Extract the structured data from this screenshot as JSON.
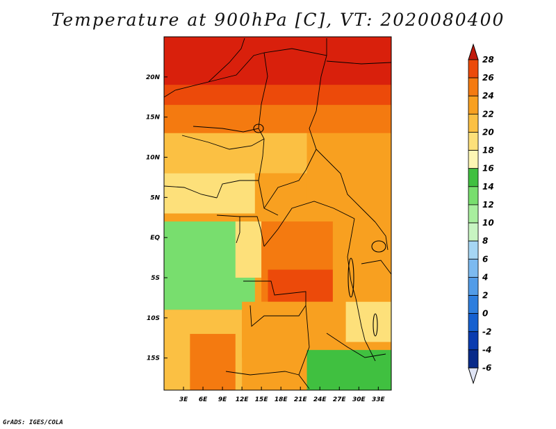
{
  "chart_data": {
    "type": "heatmap",
    "title": "Temperature at 900hPa [C], VT: 2020080400",
    "xlabel": "",
    "ylabel": "",
    "x_range": [
      0,
      35
    ],
    "y_range": [
      -19,
      25
    ],
    "x_ticks": [
      "3E",
      "6E",
      "9E",
      "12E",
      "15E",
      "18E",
      "21E",
      "24E",
      "27E",
      "30E",
      "33E"
    ],
    "x_tick_values": [
      3,
      6,
      9,
      12,
      15,
      18,
      21,
      24,
      27,
      30,
      33
    ],
    "y_ticks": [
      "20N",
      "15N",
      "10N",
      "5N",
      "EQ",
      "5S",
      "10S",
      "15S"
    ],
    "y_tick_values": [
      20,
      15,
      10,
      5,
      0,
      -5,
      -10,
      -15
    ],
    "colorbar": {
      "levels": [
        "28",
        "26",
        "24",
        "22",
        "20",
        "18",
        "16",
        "14",
        "12",
        "10",
        "8",
        "6",
        "4",
        "2",
        "0",
        "-2",
        "-4",
        "-6"
      ],
      "colors": [
        "#d9200c",
        "#ec4a0a",
        "#f47a10",
        "#f8a020",
        "#fbc043",
        "#fde07a",
        "#fdf6b4",
        "#40c040",
        "#78de6e",
        "#a8ee9e",
        "#c8f5c2",
        "#a6d6f4",
        "#7cbaf0",
        "#529ce8",
        "#2e7ede",
        "#1560d0",
        "#0a3cb0",
        "#082a8a",
        "#0a1668"
      ],
      "top_cap_color": "#c11a0c",
      "bottom_cap_color": "#dfe4f5"
    },
    "regions": [
      {
        "level": 28,
        "lon": [
          0,
          35
        ],
        "lat": [
          19,
          25
        ]
      },
      {
        "level": 26,
        "lon": [
          0,
          35
        ],
        "lat": [
          16.5,
          19
        ]
      },
      {
        "level": 24,
        "lon": [
          0,
          35
        ],
        "lat": [
          13,
          16.5
        ]
      },
      {
        "level": 20,
        "lon": [
          0,
          22
        ],
        "lat": [
          8,
          13
        ]
      },
      {
        "level": 22,
        "lon": [
          22,
          35
        ],
        "lat": [
          4,
          13
        ]
      },
      {
        "level": 22,
        "lon": [
          14,
          22
        ],
        "lat": [
          2,
          8
        ]
      },
      {
        "level": 18,
        "lon": [
          0,
          14
        ],
        "lat": [
          3,
          8
        ]
      },
      {
        "level": 12,
        "lon": [
          0,
          14
        ],
        "lat": [
          -9,
          2
        ]
      },
      {
        "level": 18,
        "lon": [
          11,
          15
        ],
        "lat": [
          -5,
          2
        ]
      },
      {
        "level": 24,
        "lon": [
          15,
          26
        ],
        "lat": [
          -8,
          2
        ]
      },
      {
        "level": 26,
        "lon": [
          16,
          26
        ],
        "lat": [
          -8,
          -4
        ]
      },
      {
        "level": 22,
        "lon": [
          26,
          35
        ],
        "lat": [
          -8,
          2
        ]
      },
      {
        "level": 20,
        "lon": [
          0,
          12
        ],
        "lat": [
          -19,
          -9
        ]
      },
      {
        "level": 24,
        "lon": [
          4,
          11
        ],
        "lat": [
          -19,
          -12
        ]
      },
      {
        "level": 22,
        "lon": [
          12,
          26
        ],
        "lat": [
          -15,
          -8
        ]
      },
      {
        "level": 14,
        "lon": [
          22,
          35
        ],
        "lat": [
          -19,
          -14
        ]
      },
      {
        "level": 18,
        "lon": [
          28,
          35
        ],
        "lat": [
          -13,
          -8
        ]
      }
    ]
  },
  "credit": "GrADS: IGES/COLA"
}
